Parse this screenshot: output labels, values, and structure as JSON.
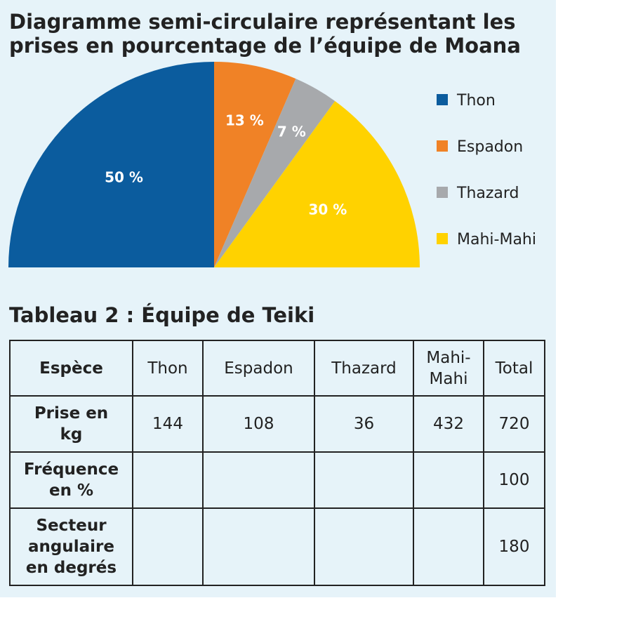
{
  "chart_data": {
    "type": "pie",
    "variant": "semi-circle",
    "title": "Diagramme semi-circulaire représentant les prises en pourcentage de l’équipe de Moana",
    "slices": [
      {
        "name": "Thon",
        "value": 50,
        "label": "50 %",
        "color": "#0b5c9e"
      },
      {
        "name": "Espadon",
        "value": 13,
        "label": "13 %",
        "color": "#f08226"
      },
      {
        "name": "Thazard",
        "value": 7,
        "label": "7 %",
        "color": "#a7a9ac"
      },
      {
        "name": "Mahi-Mahi",
        "value": 30,
        "label": "30 %",
        "color": "#ffd200"
      }
    ],
    "legend_position": "right"
  },
  "table": {
    "title": "Tableau 2 : Équipe de Teiki",
    "header_label": "Espèce",
    "columns": [
      "Thon",
      "Espadon",
      "Thazard",
      "Mahi-Mahi",
      "Total"
    ],
    "rows": [
      {
        "label": "Prise en kg",
        "values": [
          "144",
          "108",
          "36",
          "432",
          "720"
        ]
      },
      {
        "label": "Fréquence en %",
        "values": [
          "",
          "",
          "",
          "",
          "100"
        ]
      },
      {
        "label": "Secteur angulaire en degrés",
        "values": [
          "",
          "",
          "",
          "",
          "180"
        ]
      }
    ]
  }
}
